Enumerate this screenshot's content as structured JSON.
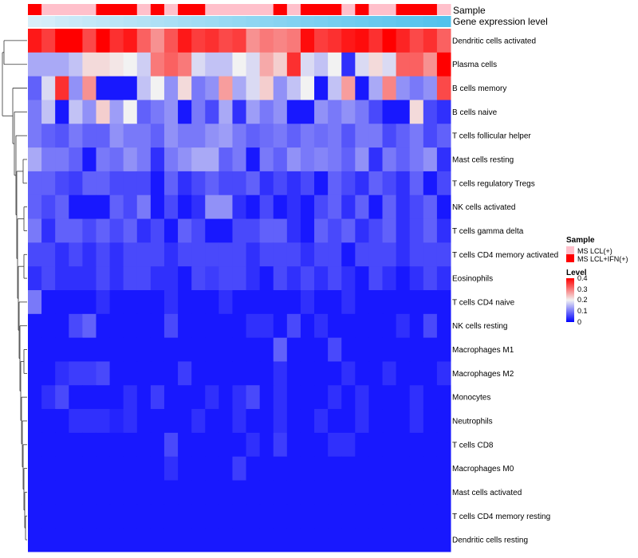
{
  "chart_data": {
    "type": "heatmap",
    "columns": 31,
    "annotation_labels": [
      "Sample",
      "Gene expression level"
    ],
    "sample_groups": [
      "MS LCL+IFN(+)",
      "MS LCL(+)",
      "MS LCL(+)",
      "MS LCL(+)",
      "MS LCL(+)",
      "MS LCL+IFN(+)",
      "MS LCL+IFN(+)",
      "MS LCL+IFN(+)",
      "MS LCL(+)",
      "MS LCL+IFN(+)",
      "MS LCL(+)",
      "MS LCL+IFN(+)",
      "MS LCL+IFN(+)",
      "MS LCL(+)",
      "MS LCL(+)",
      "MS LCL(+)",
      "MS LCL(+)",
      "MS LCL(+)",
      "MS LCL+IFN(+)",
      "MS LCL(+)",
      "MS LCL+IFN(+)",
      "MS LCL+IFN(+)",
      "MS LCL+IFN(+)",
      "MS LCL(+)",
      "MS LCL+IFN(+)",
      "MS LCL(+)",
      "MS LCL(+)",
      "MS LCL+IFN(+)",
      "MS LCL+IFN(+)",
      "MS LCL+IFN(+)",
      "MS LCL(+)"
    ],
    "expression_level": [
      0.15,
      0.17,
      0.2,
      0.22,
      0.24,
      0.26,
      0.28,
      0.3,
      0.32,
      0.34,
      0.36,
      0.38,
      0.4,
      0.42,
      0.44,
      0.46,
      0.48,
      0.5,
      0.52,
      0.54,
      0.56,
      0.58,
      0.6,
      0.62,
      0.64,
      0.66,
      0.68,
      0.7,
      0.72,
      0.74,
      0.76
    ],
    "rows": [
      "Dendritic cells activated",
      "Plasma cells",
      "B cells memory",
      "B cells naive",
      "T cells follicular helper",
      "Mast cells resting",
      "T cells regulatory  Tregs",
      "NK cells activated",
      "T cells gamma delta",
      "T cells CD4 memory activated",
      "Eosinophils",
      "T cells CD4 naive",
      "NK cells resting",
      "Macrophages M1",
      "Macrophages M2",
      "Monocytes",
      "Neutrophils",
      "T cells CD8",
      "Macrophages M0",
      "Mast cells activated",
      "T cells CD4 memory resting",
      "Dendritic cells resting"
    ],
    "values": [
      [
        0.38,
        0.35,
        0.4,
        0.4,
        0.34,
        0.4,
        0.36,
        0.38,
        0.32,
        0.28,
        0.33,
        0.38,
        0.35,
        0.36,
        0.34,
        0.35,
        0.28,
        0.3,
        0.29,
        0.3,
        0.39,
        0.35,
        0.36,
        0.38,
        0.39,
        0.36,
        0.4,
        0.37,
        0.34,
        0.36,
        0.32
      ],
      [
        0.14,
        0.14,
        0.14,
        0.16,
        0.22,
        0.22,
        0.21,
        0.2,
        0.17,
        0.3,
        0.32,
        0.3,
        0.18,
        0.16,
        0.16,
        0.2,
        0.18,
        0.26,
        0.23,
        0.36,
        0.18,
        0.16,
        0.2,
        0.04,
        0.18,
        0.22,
        0.18,
        0.32,
        0.32,
        0.28,
        0.4
      ],
      [
        0.08,
        0.18,
        0.36,
        0.12,
        0.28,
        0.02,
        0.02,
        0.02,
        0.16,
        0.2,
        0.12,
        0.22,
        0.1,
        0.12,
        0.27,
        0.14,
        0.18,
        0.23,
        0.12,
        0.16,
        0.2,
        0.02,
        0.16,
        0.27,
        0.02,
        0.14,
        0.29,
        0.12,
        0.1,
        0.12,
        0.34
      ],
      [
        0.1,
        0.16,
        0.02,
        0.16,
        0.12,
        0.23,
        0.13,
        0.2,
        0.08,
        0.1,
        0.12,
        0.02,
        0.1,
        0.06,
        0.14,
        0.04,
        0.13,
        0.1,
        0.12,
        0.02,
        0.02,
        0.12,
        0.1,
        0.12,
        0.1,
        0.06,
        0.02,
        0.02,
        0.22,
        0.06,
        0.04
      ],
      [
        0.1,
        0.08,
        0.07,
        0.1,
        0.08,
        0.08,
        0.12,
        0.1,
        0.1,
        0.08,
        0.12,
        0.1,
        0.1,
        0.12,
        0.13,
        0.1,
        0.08,
        0.09,
        0.1,
        0.08,
        0.1,
        0.09,
        0.1,
        0.07,
        0.1,
        0.1,
        0.06,
        0.08,
        0.1,
        0.06,
        0.08
      ],
      [
        0.14,
        0.1,
        0.1,
        0.08,
        0.02,
        0.1,
        0.09,
        0.12,
        0.1,
        0.04,
        0.1,
        0.12,
        0.14,
        0.14,
        0.08,
        0.1,
        0.02,
        0.1,
        0.08,
        0.12,
        0.1,
        0.11,
        0.1,
        0.08,
        0.12,
        0.04,
        0.1,
        0.08,
        0.1,
        0.12,
        0.04
      ],
      [
        0.08,
        0.08,
        0.06,
        0.05,
        0.08,
        0.08,
        0.06,
        0.06,
        0.06,
        0.02,
        0.08,
        0.04,
        0.06,
        0.08,
        0.06,
        0.06,
        0.08,
        0.04,
        0.06,
        0.04,
        0.06,
        0.02,
        0.08,
        0.06,
        0.04,
        0.08,
        0.06,
        0.04,
        0.08,
        0.02,
        0.06
      ],
      [
        0.08,
        0.06,
        0.08,
        0.02,
        0.02,
        0.02,
        0.08,
        0.06,
        0.1,
        0.02,
        0.06,
        0.02,
        0.04,
        0.12,
        0.12,
        0.04,
        0.02,
        0.06,
        0.02,
        0.04,
        0.02,
        0.06,
        0.08,
        0.04,
        0.08,
        0.02,
        0.08,
        0.04,
        0.06,
        0.08,
        0.02
      ],
      [
        0.1,
        0.04,
        0.08,
        0.08,
        0.06,
        0.08,
        0.06,
        0.08,
        0.04,
        0.06,
        0.02,
        0.08,
        0.06,
        0.02,
        0.02,
        0.06,
        0.06,
        0.08,
        0.08,
        0.04,
        0.02,
        0.08,
        0.06,
        0.08,
        0.04,
        0.06,
        0.08,
        0.04,
        0.06,
        0.08,
        0.04
      ],
      [
        0.06,
        0.06,
        0.04,
        0.06,
        0.04,
        0.06,
        0.04,
        0.06,
        0.06,
        0.06,
        0.04,
        0.06,
        0.06,
        0.06,
        0.06,
        0.06,
        0.04,
        0.06,
        0.06,
        0.06,
        0.04,
        0.06,
        0.06,
        0.02,
        0.06,
        0.06,
        0.06,
        0.04,
        0.06,
        0.06,
        0.06
      ],
      [
        0.04,
        0.06,
        0.04,
        0.04,
        0.04,
        0.06,
        0.04,
        0.06,
        0.06,
        0.04,
        0.04,
        0.02,
        0.06,
        0.05,
        0.06,
        0.06,
        0.04,
        0.02,
        0.06,
        0.04,
        0.06,
        0.04,
        0.06,
        0.04,
        0.02,
        0.06,
        0.04,
        0.02,
        0.04,
        0.06,
        0.04
      ],
      [
        0.1,
        0.02,
        0.02,
        0.02,
        0.02,
        0.04,
        0.02,
        0.02,
        0.02,
        0.02,
        0.04,
        0.02,
        0.02,
        0.02,
        0.04,
        0.02,
        0.02,
        0.02,
        0.02,
        0.02,
        0.04,
        0.02,
        0.02,
        0.04,
        0.02,
        0.02,
        0.02,
        0.02,
        0.02,
        0.02,
        0.02
      ],
      [
        0.02,
        0.02,
        0.02,
        0.06,
        0.08,
        0.02,
        0.02,
        0.02,
        0.02,
        0.02,
        0.06,
        0.02,
        0.02,
        0.02,
        0.02,
        0.02,
        0.04,
        0.04,
        0.02,
        0.06,
        0.02,
        0.04,
        0.02,
        0.02,
        0.02,
        0.02,
        0.02,
        0.04,
        0.02,
        0.06,
        0.02
      ],
      [
        0.02,
        0.02,
        0.02,
        0.02,
        0.02,
        0.02,
        0.02,
        0.02,
        0.02,
        0.02,
        0.02,
        0.02,
        0.02,
        0.02,
        0.02,
        0.02,
        0.02,
        0.02,
        0.08,
        0.02,
        0.02,
        0.02,
        0.06,
        0.02,
        0.02,
        0.02,
        0.02,
        0.02,
        0.02,
        0.02,
        0.02
      ],
      [
        0.02,
        0.02,
        0.04,
        0.05,
        0.05,
        0.06,
        0.02,
        0.02,
        0.02,
        0.02,
        0.02,
        0.05,
        0.02,
        0.02,
        0.02,
        0.02,
        0.02,
        0.02,
        0.04,
        0.02,
        0.02,
        0.02,
        0.02,
        0.04,
        0.02,
        0.02,
        0.04,
        0.02,
        0.02,
        0.02,
        0.04
      ],
      [
        0.02,
        0.04,
        0.06,
        0.02,
        0.02,
        0.02,
        0.02,
        0.04,
        0.02,
        0.05,
        0.02,
        0.02,
        0.02,
        0.04,
        0.02,
        0.04,
        0.06,
        0.02,
        0.04,
        0.02,
        0.02,
        0.02,
        0.04,
        0.02,
        0.04,
        0.02,
        0.02,
        0.02,
        0.04,
        0.02,
        0.02
      ],
      [
        0.02,
        0.02,
        0.02,
        0.04,
        0.04,
        0.04,
        0.03,
        0.04,
        0.02,
        0.02,
        0.02,
        0.02,
        0.04,
        0.02,
        0.02,
        0.04,
        0.02,
        0.02,
        0.04,
        0.02,
        0.02,
        0.04,
        0.02,
        0.02,
        0.04,
        0.02,
        0.02,
        0.02,
        0.04,
        0.02,
        0.02
      ],
      [
        0.02,
        0.02,
        0.02,
        0.02,
        0.02,
        0.02,
        0.02,
        0.02,
        0.02,
        0.02,
        0.06,
        0.02,
        0.02,
        0.02,
        0.02,
        0.02,
        0.04,
        0.02,
        0.05,
        0.02,
        0.02,
        0.02,
        0.04,
        0.04,
        0.02,
        0.02,
        0.02,
        0.02,
        0.02,
        0.02,
        0.02
      ],
      [
        0.02,
        0.02,
        0.02,
        0.02,
        0.02,
        0.02,
        0.02,
        0.02,
        0.02,
        0.02,
        0.04,
        0.02,
        0.02,
        0.02,
        0.02,
        0.05,
        0.02,
        0.02,
        0.02,
        0.02,
        0.02,
        0.02,
        0.02,
        0.02,
        0.02,
        0.02,
        0.02,
        0.02,
        0.02,
        0.02,
        0.02
      ],
      [
        0.02,
        0.02,
        0.02,
        0.02,
        0.02,
        0.02,
        0.02,
        0.02,
        0.02,
        0.02,
        0.02,
        0.02,
        0.02,
        0.02,
        0.02,
        0.02,
        0.02,
        0.02,
        0.02,
        0.02,
        0.02,
        0.02,
        0.02,
        0.02,
        0.02,
        0.02,
        0.02,
        0.02,
        0.02,
        0.02,
        0.02
      ],
      [
        0.02,
        0.02,
        0.02,
        0.02,
        0.02,
        0.02,
        0.02,
        0.02,
        0.02,
        0.02,
        0.02,
        0.02,
        0.02,
        0.02,
        0.02,
        0.02,
        0.02,
        0.02,
        0.02,
        0.02,
        0.02,
        0.02,
        0.02,
        0.02,
        0.02,
        0.02,
        0.02,
        0.02,
        0.02,
        0.02,
        0.02
      ],
      [
        0.02,
        0.02,
        0.02,
        0.02,
        0.02,
        0.02,
        0.02,
        0.02,
        0.02,
        0.02,
        0.02,
        0.02,
        0.02,
        0.02,
        0.02,
        0.02,
        0.02,
        0.02,
        0.02,
        0.02,
        0.02,
        0.02,
        0.02,
        0.02,
        0.02,
        0.02,
        0.02,
        0.02,
        0.02,
        0.02,
        0.02
      ]
    ],
    "legend": {
      "sample_title": "Sample",
      "sample_entries": [
        "MS LCL(+)",
        "MS LCL+IFN(+)"
      ],
      "level_title": "Level",
      "level_ticks": [
        "0.4",
        "0.3",
        "0.2",
        "0.1",
        "0"
      ],
      "scale": [
        0,
        0.4
      ]
    }
  },
  "colors": {
    "low": "#0000ff",
    "mid": "#f2f2f2",
    "high": "#ff0000",
    "sample_light": "#ffc0cb",
    "sample_dark": "#ff0000",
    "expr_low": "#d8eef9",
    "expr_high": "#52c2ec"
  }
}
